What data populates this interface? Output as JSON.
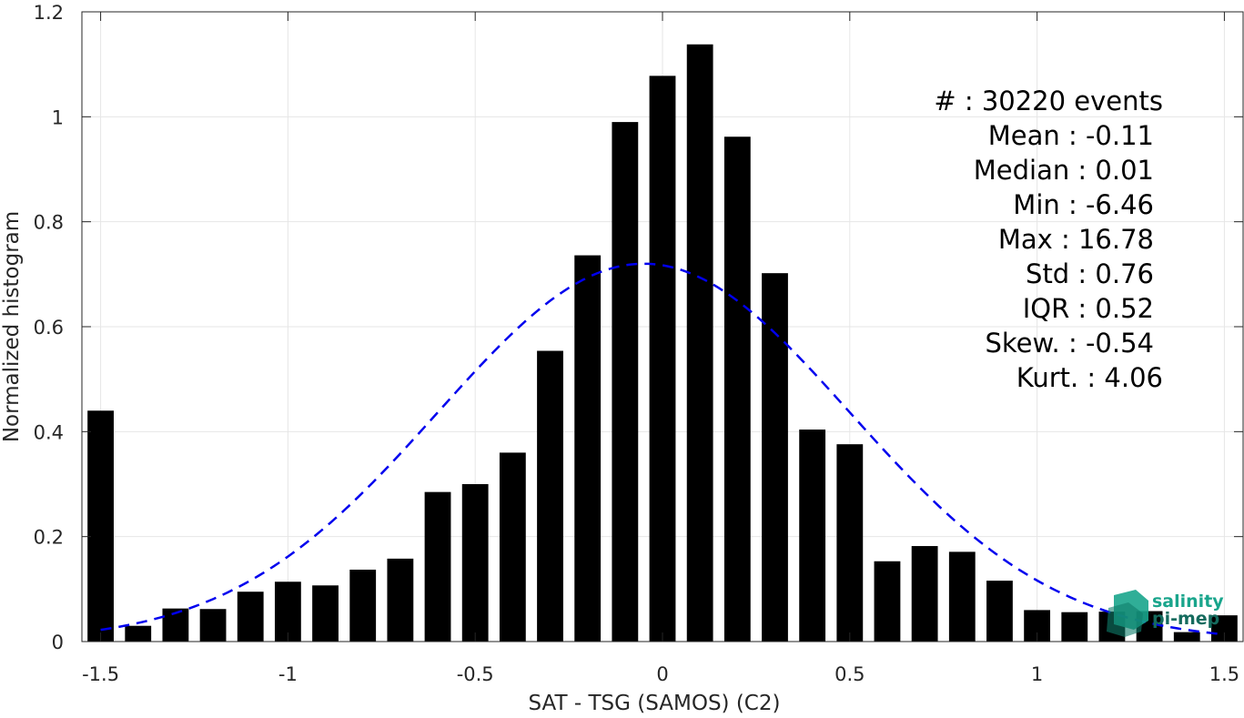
{
  "chart_data": {
    "type": "bar",
    "xlabel": "SAT - TSG (SAMOS) (C2)",
    "ylabel": "Normalized histogram",
    "xlim": [
      -1.55,
      1.55
    ],
    "ylim": [
      0,
      1.2
    ],
    "grid": true,
    "x_ticks": [
      {
        "value": -1.5,
        "label": "-1.5"
      },
      {
        "value": -1,
        "label": "-1"
      },
      {
        "value": -0.5,
        "label": "-0.5"
      },
      {
        "value": 0,
        "label": "0"
      },
      {
        "value": 0.5,
        "label": "0.5"
      },
      {
        "value": 1,
        "label": "1"
      },
      {
        "value": 1.5,
        "label": "1.5"
      }
    ],
    "y_ticks": [
      {
        "value": 0,
        "label": "0"
      },
      {
        "value": 0.2,
        "label": "0.2"
      },
      {
        "value": 0.4,
        "label": "0.4"
      },
      {
        "value": 0.6,
        "label": "0.6"
      },
      {
        "value": 0.8,
        "label": "0.8"
      },
      {
        "value": 1,
        "label": "1"
      },
      {
        "value": 1.2,
        "label": "1.2"
      }
    ],
    "bin_width": 0.1,
    "bar_color": "#000000",
    "bars": [
      {
        "x": -1.5,
        "y": 0.44
      },
      {
        "x": -1.4,
        "y": 0.03
      },
      {
        "x": -1.3,
        "y": 0.063
      },
      {
        "x": -1.2,
        "y": 0.062
      },
      {
        "x": -1.1,
        "y": 0.095
      },
      {
        "x": -1.0,
        "y": 0.114
      },
      {
        "x": -0.9,
        "y": 0.107
      },
      {
        "x": -0.8,
        "y": 0.137
      },
      {
        "x": -0.7,
        "y": 0.158
      },
      {
        "x": -0.6,
        "y": 0.285
      },
      {
        "x": -0.5,
        "y": 0.3
      },
      {
        "x": -0.4,
        "y": 0.36
      },
      {
        "x": -0.3,
        "y": 0.554
      },
      {
        "x": -0.2,
        "y": 0.736
      },
      {
        "x": -0.1,
        "y": 0.99
      },
      {
        "x": 0.0,
        "y": 1.078
      },
      {
        "x": 0.1,
        "y": 1.138
      },
      {
        "x": 0.2,
        "y": 0.962
      },
      {
        "x": 0.3,
        "y": 0.702
      },
      {
        "x": 0.4,
        "y": 0.404
      },
      {
        "x": 0.5,
        "y": 0.376
      },
      {
        "x": 0.6,
        "y": 0.153
      },
      {
        "x": 0.7,
        "y": 0.182
      },
      {
        "x": 0.8,
        "y": 0.171
      },
      {
        "x": 0.9,
        "y": 0.116
      },
      {
        "x": 1.0,
        "y": 0.06
      },
      {
        "x": 1.1,
        "y": 0.056
      },
      {
        "x": 1.2,
        "y": 0.057
      },
      {
        "x": 1.3,
        "y": 0.058
      },
      {
        "x": 1.4,
        "y": 0.018
      },
      {
        "x": 1.5,
        "y": 0.05
      }
    ],
    "fit_curve": {
      "type": "gaussian",
      "style": "dashed",
      "color": "#0000ee",
      "mean": -0.05,
      "peak": 0.72,
      "sigma": 0.55,
      "x_range": [
        -1.5,
        1.5
      ]
    },
    "stats": [
      "#  : 30220 events",
      "Mean : -0.11",
      "Median : 0.01",
      "Min : -6.46",
      "Max : 16.78",
      "Std : 0.76",
      "IQR : 0.52",
      "Skew. : -0.54",
      "Kurt. : 4.06"
    ]
  },
  "logo": {
    "line1": "salinity",
    "line2": "pi-mep",
    "color": "#1aa58c"
  }
}
